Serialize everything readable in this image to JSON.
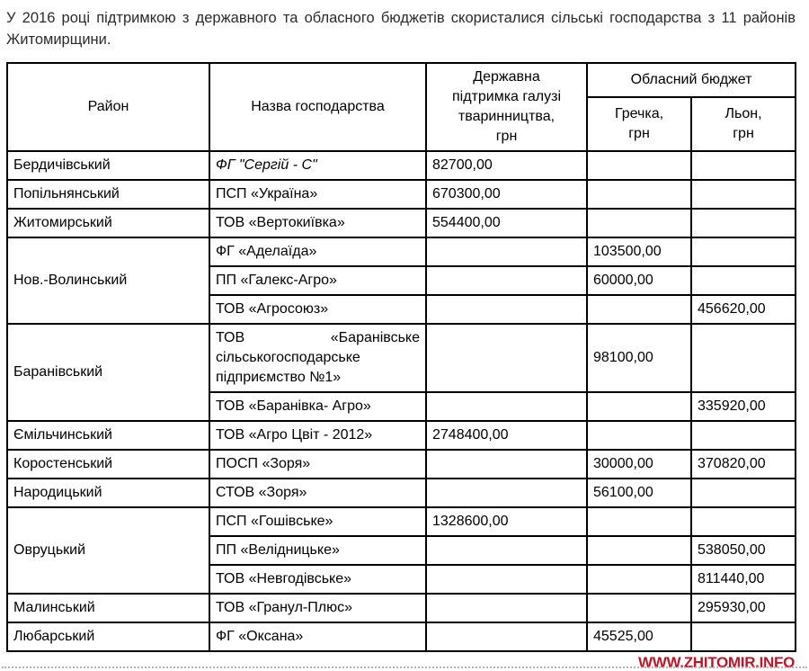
{
  "page": {
    "intro": "У 2016 році підтримкою з державного та обласного бюджетів скористалися сільські господарства з 11 районів Житомирщини.",
    "watermark": "WWW.ZHITOMIR.INFO"
  },
  "colors": {
    "watermark_red": "#bc1627",
    "table_border": "#000000",
    "intro_text": "#2b2b2b"
  },
  "table": {
    "headers": {
      "district": "Район",
      "farm": "Назва господарства",
      "state_support": "Державна\nпідтримка галузі\nтваринництва,\nгрн",
      "regional_budget": "Обласний бюджет",
      "buckwheat": "Гречка,\nгрн",
      "flax": "Льон,\nгрн"
    },
    "rows": [
      {
        "district": "Бердичівський",
        "farm": "ФГ \"Сергій - С\"",
        "state": "82700,00",
        "buckwheat": "",
        "flax": ""
      },
      {
        "district": "Попільнянський",
        "farm": "ПСП «Україна»",
        "state": "670300,00",
        "buckwheat": "",
        "flax": ""
      },
      {
        "district": "Житомирський",
        "farm": "ТОВ «Вертокиївка»",
        "state": "554400,00",
        "buckwheat": "",
        "flax": ""
      },
      {
        "district": "Нов.-Волинський",
        "farm": "ФГ «Аделаїда»",
        "state": "",
        "buckwheat": "103500,00",
        "flax": ""
      },
      {
        "farm": "ПП «Галекс-Агро»",
        "state": "",
        "buckwheat": "60000,00",
        "flax": ""
      },
      {
        "farm": "ТОВ «Агросоюз»",
        "state": "",
        "buckwheat": "",
        "flax": "456620,00"
      },
      {
        "district": "Баранівський",
        "farm": "ТОВ «Баранівське сільськогосподарське підприємство №1»",
        "state": "",
        "buckwheat": "98100,00",
        "flax": ""
      },
      {
        "farm": "ТОВ «Баранівка- Агро»",
        "state": "",
        "buckwheat": "",
        "flax": "335920,00"
      },
      {
        "district": "Ємільчинський",
        "farm": "ТОВ «Агро Цвіт - 2012»",
        "state": "2748400,00",
        "buckwheat": "",
        "flax": ""
      },
      {
        "district": "Коростенський",
        "farm": "ПОСП «Зоря»",
        "state": "",
        "buckwheat": "30000,00",
        "flax": "370820,00"
      },
      {
        "district": "Народицький",
        "farm": "СТОВ «Зоря»",
        "state": "",
        "buckwheat": "56100,00",
        "flax": ""
      },
      {
        "district": "Овруцький",
        "farm": "ПСП «Гошівське»",
        "state": "1328600,00",
        "buckwheat": "",
        "flax": ""
      },
      {
        "farm": "ПП «Велідницьке»",
        "state": "",
        "buckwheat": "",
        "flax": "538050,00"
      },
      {
        "farm": "ТОВ «Невгодівське»",
        "state": "",
        "buckwheat": "",
        "flax": "811440,00"
      },
      {
        "district": "Малинський",
        "farm": "ТОВ «Гранул-Плюс»",
        "state": "",
        "buckwheat": "",
        "flax": "295930,00"
      },
      {
        "district": "Любарський",
        "farm": "ФГ «Оксана»",
        "state": "",
        "buckwheat": "45525,00",
        "flax": ""
      }
    ]
  }
}
